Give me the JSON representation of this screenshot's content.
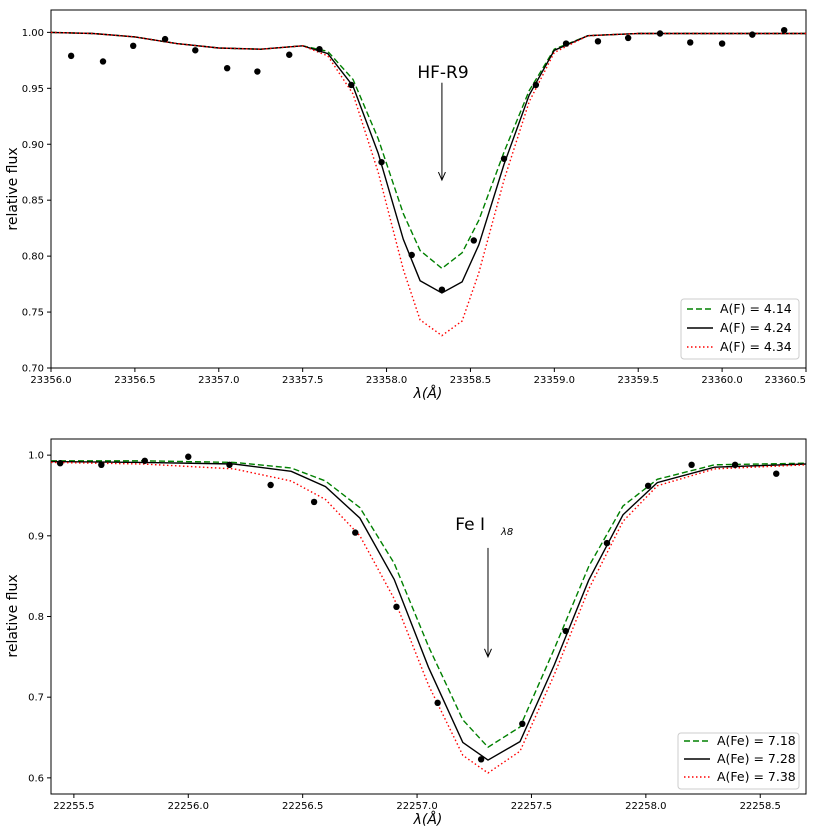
{
  "chart_data": [
    {
      "type": "line",
      "xlabel": "λ(Å)",
      "ylabel": "relative flux",
      "xlim": [
        23356.0,
        23360.5
      ],
      "ylim": [
        0.7,
        1.02
      ],
      "xticks": [
        23356.0,
        23356.5,
        23357.0,
        23357.5,
        23358.0,
        23358.5,
        23359.0,
        23359.5,
        23360.0,
        23360.5
      ],
      "xtick_labels": [
        "23356.0",
        "23356.5",
        "23357.0",
        "23357.5",
        "23358.0",
        "23358.5",
        "23359.0",
        "23359.5",
        "23360.0",
        "23360.5"
      ],
      "yticks": [
        0.7,
        0.75,
        0.8,
        0.85,
        0.9,
        0.95,
        1.0
      ],
      "ytick_labels": [
        "0.70",
        "0.75",
        "0.80",
        "0.85",
        "0.90",
        "0.95",
        "1.00"
      ],
      "grid": false,
      "legend_position": "bottom-right",
      "annotation": {
        "text": "HF-R9",
        "arrow_x": 23358.33,
        "arrow_from_y": 0.955,
        "arrow_to_y": 0.868
      },
      "series": [
        {
          "name": "A(F) = 4.14",
          "color": "#008000",
          "style": "dashed",
          "x": [
            23356.0,
            23356.25,
            23356.5,
            23356.75,
            23357.0,
            23357.25,
            23357.5,
            23357.65,
            23357.8,
            23357.95,
            23358.1,
            23358.2,
            23358.33,
            23358.45,
            23358.55,
            23358.7,
            23358.85,
            23359.0,
            23359.2,
            23359.5,
            23360.0,
            23360.5
          ],
          "y": [
            1.0,
            0.999,
            0.996,
            0.99,
            0.986,
            0.985,
            0.988,
            0.983,
            0.958,
            0.905,
            0.838,
            0.805,
            0.789,
            0.803,
            0.832,
            0.893,
            0.948,
            0.985,
            0.997,
            0.999,
            0.999,
            0.999
          ]
        },
        {
          "name": "A(F) = 4.24",
          "color": "#000000",
          "style": "solid",
          "x": [
            23356.0,
            23356.25,
            23356.5,
            23356.75,
            23357.0,
            23357.25,
            23357.5,
            23357.65,
            23357.8,
            23357.95,
            23358.1,
            23358.2,
            23358.33,
            23358.45,
            23358.55,
            23358.7,
            23358.85,
            23359.0,
            23359.2,
            23359.5,
            23360.0,
            23360.5
          ],
          "y": [
            1.0,
            0.999,
            0.996,
            0.99,
            0.986,
            0.985,
            0.988,
            0.981,
            0.952,
            0.892,
            0.815,
            0.778,
            0.767,
            0.777,
            0.81,
            0.882,
            0.944,
            0.984,
            0.997,
            0.999,
            0.999,
            0.999
          ]
        },
        {
          "name": "A(F) = 4.34",
          "color": "#ff0000",
          "style": "dotted",
          "x": [
            23356.0,
            23356.25,
            23356.5,
            23356.75,
            23357.0,
            23357.25,
            23357.5,
            23357.65,
            23357.8,
            23357.95,
            23358.1,
            23358.2,
            23358.33,
            23358.45,
            23358.55,
            23358.7,
            23358.85,
            23359.0,
            23359.2,
            23359.5,
            23360.0,
            23360.5
          ],
          "y": [
            1.0,
            0.999,
            0.996,
            0.99,
            0.986,
            0.985,
            0.988,
            0.979,
            0.945,
            0.875,
            0.788,
            0.743,
            0.729,
            0.742,
            0.785,
            0.868,
            0.938,
            0.982,
            0.997,
            0.999,
            0.999,
            0.999
          ]
        }
      ],
      "observed": {
        "x": [
          23356.12,
          23356.31,
          23356.49,
          23356.68,
          23356.86,
          23357.05,
          23357.23,
          23357.42,
          23357.6,
          23357.79,
          23357.97,
          23358.15,
          23358.33,
          23358.52,
          23358.7,
          23358.89,
          23359.07,
          23359.26,
          23359.44,
          23359.63,
          23359.81,
          23360.0,
          23360.18,
          23360.37
        ],
        "y": [
          0.979,
          0.974,
          0.988,
          0.994,
          0.984,
          0.968,
          0.965,
          0.98,
          0.985,
          0.953,
          0.884,
          0.801,
          0.77,
          0.814,
          0.887,
          0.953,
          0.99,
          0.992,
          0.995,
          0.999,
          0.991,
          0.99,
          0.998,
          1.002
        ]
      }
    },
    {
      "type": "line",
      "xlabel": "λ(Å)",
      "ylabel": "relative flux",
      "xlim": [
        22255.4,
        22258.7
      ],
      "ylim": [
        0.58,
        1.02
      ],
      "xticks": [
        22255.5,
        22256.0,
        22256.5,
        22257.0,
        22257.5,
        22258.0,
        22258.5
      ],
      "xtick_labels": [
        "22255.5",
        "22256.0",
        "22256.5",
        "22257.0",
        "22257.5",
        "22258.0",
        "22258.5"
      ],
      "yticks": [
        0.6,
        0.7,
        0.8,
        0.9,
        1.0
      ],
      "ytick_labels": [
        "0.6",
        "0.7",
        "0.8",
        "0.9",
        "1.0"
      ],
      "grid": false,
      "legend_position": "bottom-right",
      "annotation": {
        "text": "Fe I",
        "subscript": "λ8",
        "arrow_x": 22257.31,
        "arrow_from_y": 0.885,
        "arrow_to_y": 0.75
      },
      "series": [
        {
          "name": "A(Fe) = 7.18",
          "color": "#008000",
          "style": "dashed",
          "x": [
            22255.4,
            22255.8,
            22256.2,
            22256.45,
            22256.6,
            22256.75,
            22256.9,
            22257.05,
            22257.2,
            22257.31,
            22257.45,
            22257.6,
            22257.75,
            22257.9,
            22258.05,
            22258.3,
            22258.7
          ],
          "y": [
            0.993,
            0.993,
            0.991,
            0.984,
            0.968,
            0.935,
            0.866,
            0.763,
            0.672,
            0.638,
            0.663,
            0.76,
            0.862,
            0.937,
            0.97,
            0.988,
            0.99
          ]
        },
        {
          "name": "A(Fe) = 7.28",
          "color": "#000000",
          "style": "solid",
          "x": [
            22255.4,
            22255.8,
            22256.2,
            22256.45,
            22256.6,
            22256.75,
            22256.9,
            22257.05,
            22257.2,
            22257.31,
            22257.45,
            22257.6,
            22257.75,
            22257.9,
            22258.05,
            22258.3,
            22258.7
          ],
          "y": [
            0.992,
            0.991,
            0.989,
            0.98,
            0.961,
            0.922,
            0.846,
            0.737,
            0.644,
            0.622,
            0.645,
            0.74,
            0.845,
            0.926,
            0.966,
            0.985,
            0.989
          ]
        },
        {
          "name": "A(Fe) = 7.38",
          "color": "#ff0000",
          "style": "dotted",
          "x": [
            22255.4,
            22255.8,
            22256.2,
            22256.45,
            22256.6,
            22256.75,
            22256.9,
            22257.05,
            22257.2,
            22257.31,
            22257.45,
            22257.6,
            22257.75,
            22257.9,
            22258.05,
            22258.3,
            22258.7
          ],
          "y": [
            0.991,
            0.989,
            0.983,
            0.968,
            0.945,
            0.9,
            0.822,
            0.715,
            0.628,
            0.606,
            0.633,
            0.728,
            0.834,
            0.918,
            0.962,
            0.983,
            0.988
          ]
        }
      ],
      "observed": {
        "x": [
          22255.44,
          22255.62,
          22255.81,
          22256.0,
          22256.18,
          22256.36,
          22256.55,
          22256.73,
          22256.91,
          22257.09,
          22257.28,
          22257.46,
          22257.65,
          22257.83,
          22258.01,
          22258.2,
          22258.39,
          22258.57
        ],
        "y": [
          0.99,
          0.988,
          0.993,
          0.998,
          0.988,
          0.963,
          0.942,
          0.904,
          0.812,
          0.693,
          0.623,
          0.667,
          0.782,
          0.891,
          0.962,
          0.988,
          0.988,
          0.977
        ]
      }
    }
  ]
}
